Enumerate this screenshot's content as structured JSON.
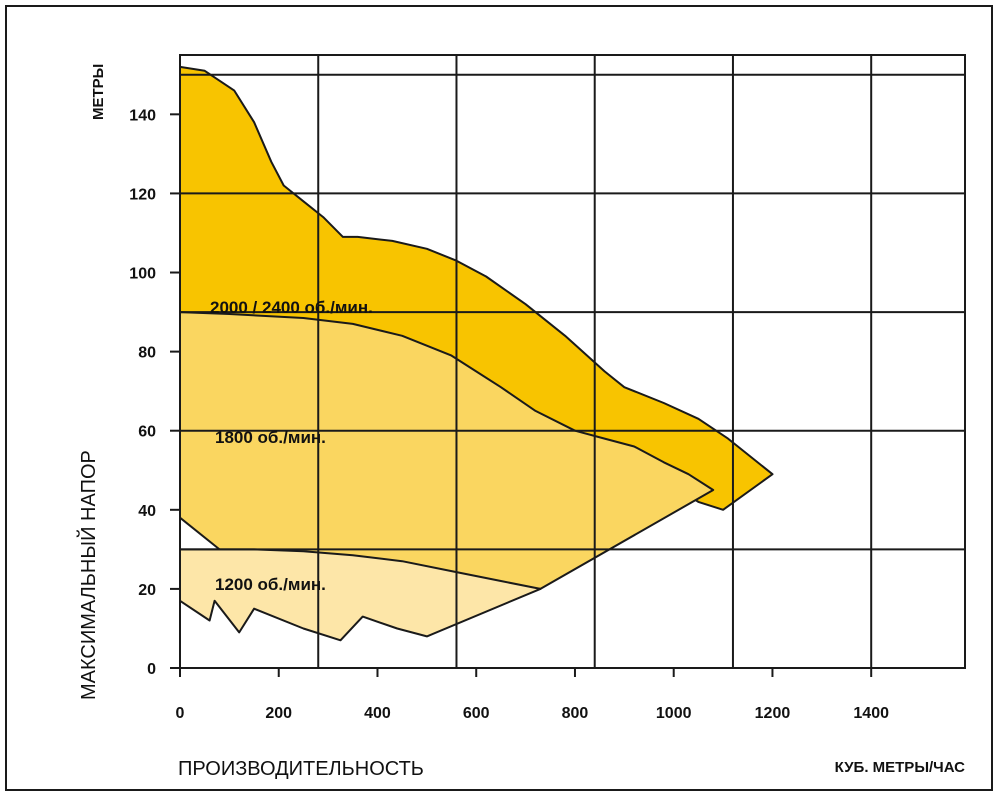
{
  "chart_data": {
    "type": "area",
    "xlabel": "ПРОИЗВОДИТЕЛЬНОСТЬ",
    "xunit": "КУБ. МЕТРЫ/ЧАС",
    "ylabel": "МАКСИМАЛЬНЫЙ НАПОР",
    "yunit": "МЕТРЫ",
    "xlim": [
      0,
      1590
    ],
    "ylim": [
      0,
      155
    ],
    "x_ticks": [
      "0",
      "200",
      "400",
      "600",
      "800",
      "1000",
      "1200",
      "1400"
    ],
    "y_ticks": [
      "0",
      "20",
      "40",
      "60",
      "80",
      "100",
      "120",
      "140"
    ],
    "grid": true,
    "colors": {
      "high": "#F8C400",
      "mid": "#FAD660",
      "low": "#FDE6A8",
      "outline": "#1a1a1a",
      "grid": "#1a1a1a"
    },
    "series": [
      {
        "name": "2000 / 2400 об./мин.",
        "upper": [
          [
            0,
            152
          ],
          [
            50,
            151
          ],
          [
            110,
            146
          ],
          [
            150,
            138
          ],
          [
            185,
            128
          ],
          [
            210,
            122
          ],
          [
            250,
            118
          ],
          [
            290,
            114
          ],
          [
            330,
            109
          ],
          [
            360,
            109
          ],
          [
            430,
            108
          ],
          [
            500,
            106
          ],
          [
            560,
            103
          ],
          [
            620,
            99
          ],
          [
            700,
            92
          ],
          [
            780,
            84
          ],
          [
            860,
            75
          ],
          [
            900,
            71
          ],
          [
            980,
            67
          ],
          [
            1050,
            63
          ],
          [
            1110,
            58
          ],
          [
            1160,
            53
          ],
          [
            1200,
            49
          ]
        ],
        "lower": [
          [
            0,
            65
          ],
          [
            100,
            66
          ],
          [
            250,
            67
          ],
          [
            400,
            66
          ],
          [
            550,
            64
          ],
          [
            650,
            62
          ],
          [
            720,
            60
          ],
          [
            800,
            57
          ],
          [
            880,
            53
          ],
          [
            950,
            49
          ],
          [
            1000,
            46
          ],
          [
            1050,
            42
          ],
          [
            1100,
            40
          ]
        ]
      },
      {
        "name": "1800 об./мин.",
        "upper": [
          [
            0,
            90
          ],
          [
            100,
            89.5
          ],
          [
            250,
            88.5
          ],
          [
            350,
            87
          ],
          [
            450,
            84
          ],
          [
            550,
            79
          ],
          [
            650,
            71
          ],
          [
            720,
            65
          ],
          [
            800,
            60
          ],
          [
            860,
            58
          ],
          [
            920,
            56
          ],
          [
            980,
            52
          ],
          [
            1030,
            49
          ],
          [
            1080,
            45
          ]
        ],
        "lower": [
          [
            0,
            38
          ],
          [
            80,
            30
          ],
          [
            150,
            28
          ],
          [
            250,
            27
          ],
          [
            350,
            26
          ],
          [
            450,
            24.5
          ],
          [
            550,
            23
          ],
          [
            620,
            21.5
          ],
          [
            680,
            20.5
          ],
          [
            730,
            20
          ]
        ]
      },
      {
        "name": "1200 об./мин.",
        "upper": [
          [
            0,
            30
          ],
          [
            50,
            30
          ],
          [
            150,
            30
          ],
          [
            250,
            29.5
          ],
          [
            350,
            28.5
          ],
          [
            450,
            27
          ],
          [
            550,
            24.5
          ],
          [
            650,
            22
          ],
          [
            730,
            20
          ]
        ],
        "lower": [
          [
            0,
            17
          ],
          [
            60,
            12
          ],
          [
            70,
            17
          ],
          [
            120,
            9
          ],
          [
            150,
            15
          ],
          [
            250,
            10
          ],
          [
            325,
            7
          ],
          [
            370,
            13
          ],
          [
            440,
            10
          ],
          [
            500,
            8
          ]
        ]
      }
    ]
  }
}
